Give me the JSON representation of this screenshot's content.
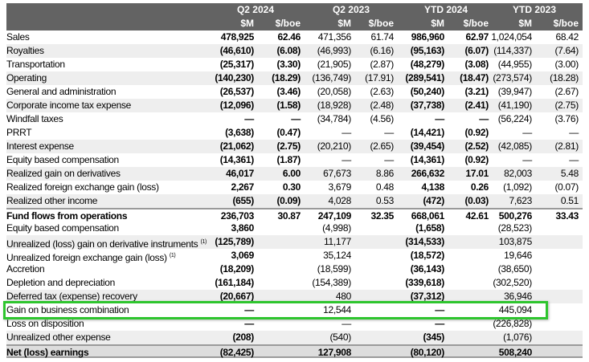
{
  "header": {
    "periods": [
      "Q2 2024",
      "Q2 2023",
      "YTD 2024",
      "YTD 2023"
    ],
    "units": [
      "$M",
      "$/boe",
      "$M",
      "$/boe",
      "$M",
      "$/boe",
      "$M",
      "$/boe"
    ]
  },
  "rows": [
    {
      "label": "Sales",
      "v": [
        "478,925",
        "62.46",
        "471,356",
        "61.74",
        "986,960",
        "62.97",
        "1,024,054",
        "68.42"
      ]
    },
    {
      "label": "Royalties",
      "v": [
        "(46,610)",
        "(6.08)",
        "(46,993)",
        "(6.16)",
        "(95,163)",
        "(6.07)",
        "(114,337)",
        "(7.64)"
      ]
    },
    {
      "label": "Transportation",
      "v": [
        "(25,317)",
        "(3.30)",
        "(21,905)",
        "(2.87)",
        "(48,279)",
        "(3.08)",
        "(44,955)",
        "(3.00)"
      ]
    },
    {
      "label": "Operating",
      "v": [
        "(140,230)",
        "(18.29)",
        "(136,749)",
        "(17.91)",
        "(289,541)",
        "(18.47)",
        "(273,574)",
        "(18.28)"
      ]
    },
    {
      "label": "General and administration",
      "v": [
        "(26,537)",
        "(3.46)",
        "(20,058)",
        "(2.63)",
        "(50,240)",
        "(3.21)",
        "(39,947)",
        "(2.67)"
      ]
    },
    {
      "label": "Corporate income tax expense",
      "v": [
        "(12,096)",
        "(1.58)",
        "(18,928)",
        "(2.48)",
        "(37,738)",
        "(2.41)",
        "(41,190)",
        "(2.75)"
      ]
    },
    {
      "label": "Windfall taxes",
      "v": [
        "—",
        "—",
        "(34,784)",
        "(4.56)",
        "—",
        "—",
        "(56,224)",
        "(3.76)"
      ]
    },
    {
      "label": "PRRT",
      "v": [
        "(3,638)",
        "(0.47)",
        "—",
        "—",
        "(14,421)",
        "(0.92)",
        "—",
        "—"
      ]
    },
    {
      "label": "Interest expense",
      "v": [
        "(21,062)",
        "(2.75)",
        "(20,210)",
        "(2.65)",
        "(39,454)",
        "(2.52)",
        "(42,085)",
        "(2.81)"
      ]
    },
    {
      "label": "Equity based compensation",
      "v": [
        "(14,361)",
        "(1.87)",
        "—",
        "—",
        "(14,361)",
        "(0.92)",
        "—",
        "—"
      ]
    },
    {
      "label": "Realized gain on derivatives",
      "v": [
        "46,017",
        "6.00",
        "67,673",
        "8.86",
        "266,632",
        "17.01",
        "82,003",
        "5.48"
      ]
    },
    {
      "label": "Realized foreign exchange gain (loss)",
      "v": [
        "2,267",
        "0.30",
        "3,679",
        "0.48",
        "4,138",
        "0.26",
        "(1,092)",
        "(0.07)"
      ]
    },
    {
      "label": "Realized other income",
      "v": [
        "(655)",
        "(0.09)",
        "4,028",
        "0.53",
        "(472)",
        "(0.03)",
        "7,623",
        "0.51"
      ]
    },
    {
      "label": "Fund flows from operations",
      "v": [
        "236,703",
        "30.87",
        "247,109",
        "32.35",
        "668,061",
        "42.61",
        "500,276",
        "33.43"
      ]
    },
    {
      "label": "Equity based compensation",
      "v": [
        "3,860",
        "",
        "(4,998)",
        "",
        "(1,658)",
        "",
        "(28,523)",
        ""
      ]
    },
    {
      "label": "Unrealized (loss) gain on derivative instruments",
      "note": "(1)",
      "v": [
        "(125,789)",
        "",
        "11,177",
        "",
        "(314,533)",
        "",
        "103,875",
        ""
      ]
    },
    {
      "label": "Unrealized foreign exchange gain (loss)",
      "note": "(1)",
      "v": [
        "3,069",
        "",
        "35,124",
        "",
        "(18,572)",
        "",
        "19,646",
        ""
      ]
    },
    {
      "label": "Accretion",
      "v": [
        "(18,209)",
        "",
        "(18,599)",
        "",
        "(36,143)",
        "",
        "(38,650)",
        ""
      ]
    },
    {
      "label": "Depletion and depreciation",
      "v": [
        "(161,184)",
        "",
        "(154,389)",
        "",
        "(339,618)",
        "",
        "(302,520)",
        ""
      ]
    },
    {
      "label": "Deferred tax (expense) recovery",
      "v": [
        "(20,667)",
        "",
        "480",
        "",
        "(37,312)",
        "",
        "36,946",
        ""
      ]
    },
    {
      "label": "Gain on business combination",
      "v": [
        "—",
        "",
        "12,544",
        "",
        "—",
        "",
        "445,094",
        ""
      ]
    },
    {
      "label": "Loss on disposition",
      "v": [
        "—",
        "",
        "—",
        "",
        "—",
        "",
        "(226,828)",
        ""
      ]
    },
    {
      "label": "Unrealized other expense",
      "v": [
        "(208)",
        "",
        "(540)",
        "",
        "(345)",
        "",
        "(1,076)",
        ""
      ]
    },
    {
      "label": "Net (loss) earnings",
      "v": [
        "(82,425)",
        "",
        "127,908",
        "",
        "(80,120)",
        "",
        "508,240",
        ""
      ]
    }
  ],
  "highlight_color": "#2ec52e"
}
